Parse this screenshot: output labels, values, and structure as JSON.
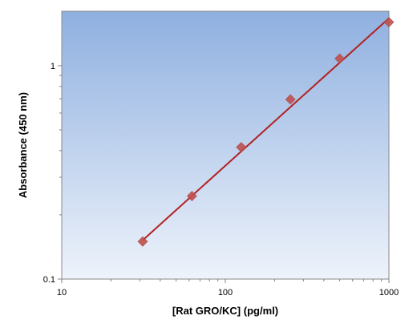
{
  "chart_data": {
    "type": "scatter",
    "title": "",
    "xlabel": "[Rat GRO/KC] (pg/ml)",
    "ylabel": "Absorbance (450 nm)",
    "x_scale": "log",
    "y_scale": "log",
    "xlim": [
      10,
      1000
    ],
    "ylim": [
      0.1,
      1.8
    ],
    "x_ticks": [
      "10",
      "100",
      "1000"
    ],
    "y_ticks": [
      "0.1",
      "1"
    ],
    "grid": false,
    "legend": "none",
    "series": [
      {
        "type": "scatter",
        "marker": "diamond",
        "color": "#c0504d",
        "x": [
          31.25,
          62.5,
          125,
          250,
          500,
          1000
        ],
        "y": [
          0.15,
          0.245,
          0.415,
          0.695,
          1.08,
          1.6
        ]
      },
      {
        "type": "line",
        "color": "#b22222",
        "x": [
          31.25,
          1000
        ],
        "y": [
          0.152,
          1.67
        ]
      }
    ]
  },
  "colors": {
    "plot_bg_top": "#8fb0e0",
    "plot_bg_bottom": "#eef3fb",
    "marker": "#c0504d",
    "fit_line": "#b22222"
  }
}
